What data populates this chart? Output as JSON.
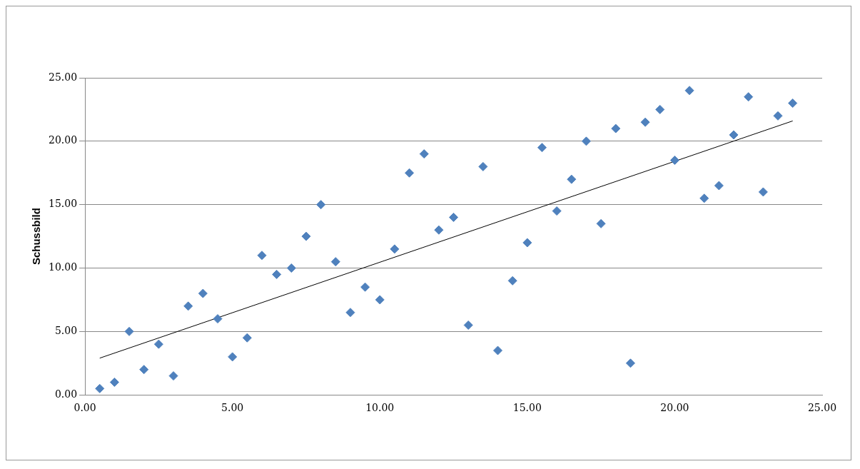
{
  "chart_data": {
    "type": "scatter",
    "ylabel": "Schussbild",
    "grid": "y",
    "legend": false,
    "xlim": [
      0,
      25
    ],
    "xticks": [
      {
        "value": 0,
        "label": "0.00"
      },
      {
        "value": 5,
        "label": "5.00"
      },
      {
        "value": 10,
        "label": "10.00"
      },
      {
        "value": 15,
        "label": "15.00"
      },
      {
        "value": 20,
        "label": "20.00"
      },
      {
        "value": 25,
        "label": "25.00"
      }
    ],
    "ylim": [
      0,
      25
    ],
    "yticks": [
      {
        "value": 0,
        "label": "0.00"
      },
      {
        "value": 5,
        "label": "5.00"
      },
      {
        "value": 10,
        "label": "10.00"
      },
      {
        "value": 15,
        "label": "15.00"
      },
      {
        "value": 20,
        "label": "20.00"
      },
      {
        "value": 25,
        "label": "25.00"
      }
    ],
    "series": [
      {
        "marker": "diamond",
        "color": "#4f81bd",
        "x": [
          0.5,
          1,
          1.5,
          2,
          2.5,
          3,
          3.5,
          4,
          4.5,
          5,
          5.5,
          6,
          6.5,
          7,
          7.5,
          8,
          8.5,
          9,
          9.5,
          10,
          10.5,
          11,
          11.5,
          12,
          12.5,
          13,
          13.5,
          14,
          14.5,
          15,
          15.5,
          16,
          16.5,
          17,
          17.5,
          18,
          18.5,
          19,
          19.5,
          20,
          20.5,
          21,
          21.5,
          22,
          22.5,
          23,
          23.5,
          24
        ],
        "values": [
          0.5,
          1,
          5,
          2,
          4,
          1.5,
          7,
          8,
          6,
          3,
          4.5,
          11,
          9.5,
          10,
          12.5,
          15,
          10.5,
          6.5,
          8.5,
          7.5,
          11.5,
          17.5,
          19,
          13,
          14,
          5.5,
          18,
          3.5,
          9,
          12,
          19.5,
          14.5,
          17,
          20,
          13.5,
          21,
          2.5,
          21.5,
          22.5,
          18.5,
          24,
          15.5,
          16.5,
          20.5,
          23.5,
          16,
          22,
          23
        ]
      },
      {
        "type": "line",
        "color": "#000000",
        "x": [
          0.5,
          24
        ],
        "values": [
          2.9,
          21.6
        ]
      }
    ]
  }
}
